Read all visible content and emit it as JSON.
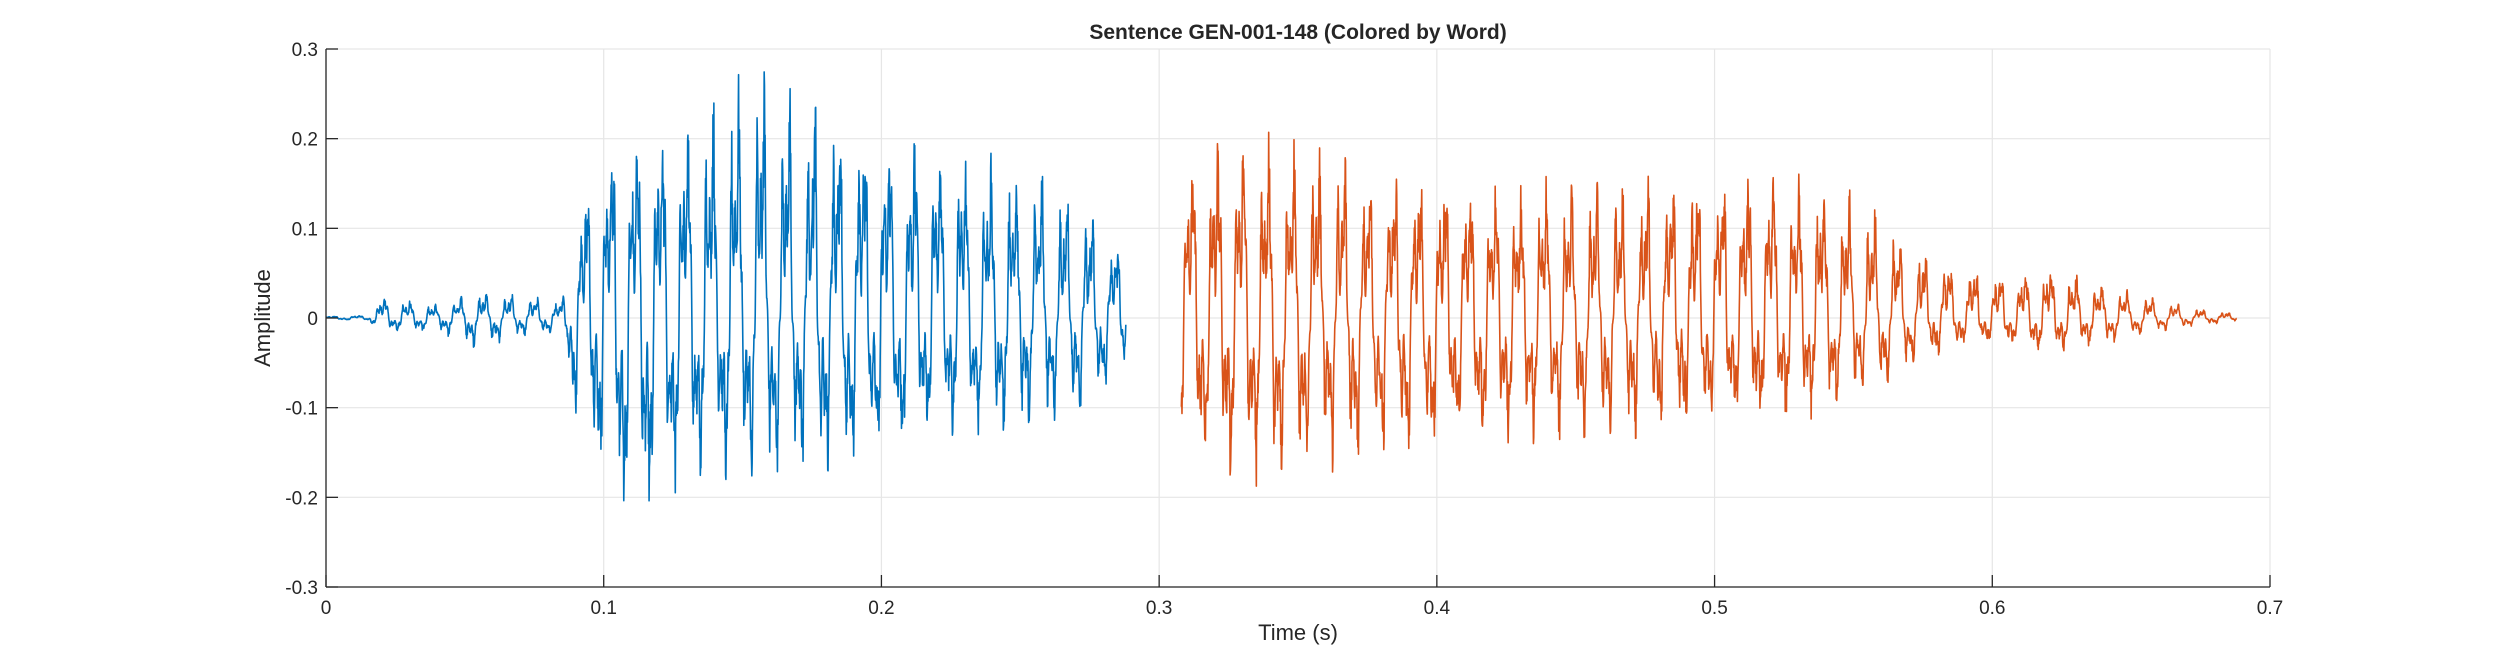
{
  "chart_data": {
    "type": "line",
    "title": "Sentence GEN-001-148 (Colored by Word)",
    "xlabel": "Time (s)",
    "ylabel": "Amplitude",
    "xlim": [
      0,
      0.7
    ],
    "ylim": [
      -0.3,
      0.3
    ],
    "xticks": [
      0,
      0.1,
      0.2,
      0.3,
      0.4,
      0.5,
      0.6,
      0.7
    ],
    "xtick_labels": [
      "0",
      "0.1",
      "0.2",
      "0.3",
      "0.4",
      "0.5",
      "0.6",
      "0.7"
    ],
    "yticks": [
      -0.3,
      -0.2,
      -0.1,
      0,
      0.1,
      0.2,
      0.3
    ],
    "ytick_labels": [
      "-0.3",
      "-0.2",
      "-0.1",
      "0",
      "0.1",
      "0.2",
      "0.3"
    ],
    "grid": true,
    "series": [
      {
        "color": "#0072BD",
        "start": 0.0,
        "end": 0.288,
        "envelope": {
          "t": [
            0.0,
            0.015,
            0.02,
            0.04,
            0.055,
            0.07,
            0.085,
            0.09,
            0.1,
            0.11,
            0.125,
            0.14,
            0.155,
            0.17,
            0.185,
            0.2,
            0.215,
            0.23,
            0.245,
            0.26,
            0.275,
            0.288
          ],
          "pos": [
            0.002,
            0.003,
            0.025,
            0.015,
            0.03,
            0.025,
            0.02,
            0.12,
            0.2,
            0.21,
            0.23,
            0.26,
            0.28,
            0.25,
            0.24,
            0.22,
            0.21,
            0.19,
            0.18,
            0.16,
            0.12,
            0.08
          ],
          "neg": [
            0.002,
            0.003,
            0.015,
            0.015,
            0.035,
            0.02,
            0.02,
            0.12,
            0.19,
            0.25,
            0.2,
            0.18,
            0.18,
            0.18,
            0.17,
            0.16,
            0.14,
            0.13,
            0.13,
            0.12,
            0.1,
            0.06
          ]
        }
      },
      {
        "color": "#D95319",
        "start": 0.308,
        "end": 0.688,
        "envelope": {
          "t": [
            0.308,
            0.32,
            0.335,
            0.35,
            0.365,
            0.38,
            0.4,
            0.42,
            0.44,
            0.46,
            0.48,
            0.5,
            0.52,
            0.54,
            0.56,
            0.575,
            0.59,
            0.605,
            0.62,
            0.64,
            0.66,
            0.675,
            0.688
          ],
          "pos": [
            0.17,
            0.2,
            0.21,
            0.2,
            0.18,
            0.17,
            0.16,
            0.15,
            0.16,
            0.15,
            0.16,
            0.17,
            0.17,
            0.16,
            0.12,
            0.08,
            0.06,
            0.05,
            0.06,
            0.04,
            0.02,
            0.01,
            0.005
          ],
          "neg": [
            0.17,
            0.17,
            0.19,
            0.18,
            0.17,
            0.16,
            0.15,
            0.14,
            0.14,
            0.14,
            0.13,
            0.13,
            0.12,
            0.11,
            0.08,
            0.05,
            0.03,
            0.03,
            0.04,
            0.03,
            0.015,
            0.008,
            0.004
          ]
        }
      }
    ]
  }
}
